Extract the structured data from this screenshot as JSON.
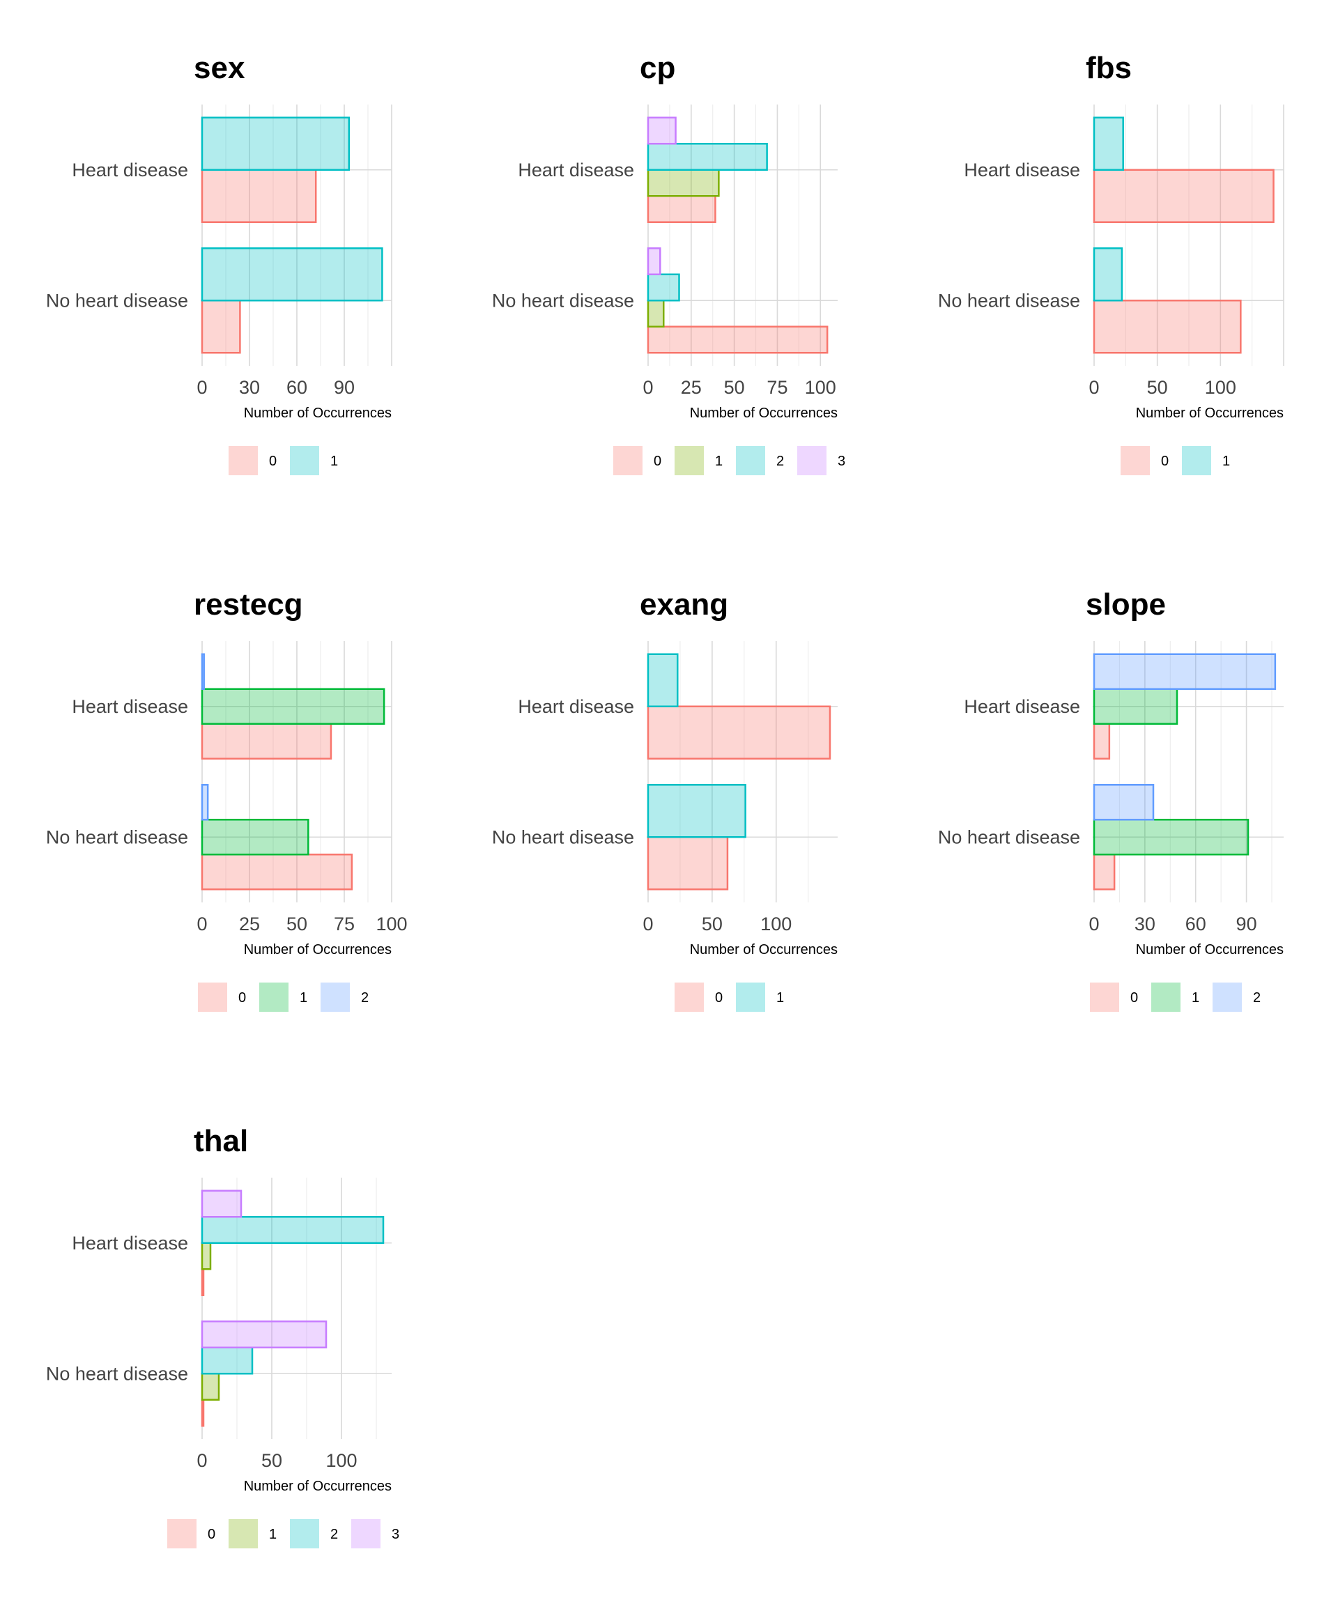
{
  "chart_data": [
    {
      "type": "bar",
      "orientation": "horizontal",
      "title": "sex",
      "xlabel": "Number of Occurrences",
      "categories": [
        "Heart disease",
        "No heart disease"
      ],
      "xlim": [
        0,
        120
      ],
      "xticks": [
        0,
        30,
        60,
        90
      ],
      "series": [
        {
          "name": "0",
          "values": [
            72,
            24
          ]
        },
        {
          "name": "1",
          "values": [
            93,
            114
          ]
        }
      ],
      "legend_position": "bottom",
      "grid": true
    },
    {
      "type": "bar",
      "orientation": "horizontal",
      "title": "cp",
      "xlabel": "Number of Occurrences",
      "categories": [
        "Heart disease",
        "No heart disease"
      ],
      "xlim": [
        0,
        110
      ],
      "xticks": [
        0,
        25,
        50,
        75,
        100
      ],
      "series": [
        {
          "name": "0",
          "values": [
            39,
            104
          ]
        },
        {
          "name": "1",
          "values": [
            41,
            9
          ]
        },
        {
          "name": "2",
          "values": [
            69,
            18
          ]
        },
        {
          "name": "3",
          "values": [
            16,
            7
          ]
        }
      ],
      "legend_position": "bottom",
      "grid": true
    },
    {
      "type": "bar",
      "orientation": "horizontal",
      "title": "fbs",
      "xlabel": "Number of Occurrences",
      "categories": [
        "Heart disease",
        "No heart disease"
      ],
      "xlim": [
        0,
        150
      ],
      "xticks": [
        0,
        50,
        100
      ],
      "series": [
        {
          "name": "0",
          "values": [
            142,
            116
          ]
        },
        {
          "name": "1",
          "values": [
            23,
            22
          ]
        }
      ],
      "legend_position": "bottom",
      "grid": true
    },
    {
      "type": "bar",
      "orientation": "horizontal",
      "title": "restecg",
      "xlabel": "Number of Occurrences",
      "categories": [
        "Heart disease",
        "No heart disease"
      ],
      "xlim": [
        0,
        100
      ],
      "xticks": [
        0,
        25,
        50,
        75,
        100
      ],
      "series": [
        {
          "name": "0",
          "values": [
            68,
            79
          ]
        },
        {
          "name": "1",
          "values": [
            96,
            56
          ]
        },
        {
          "name": "2",
          "values": [
            1,
            3
          ]
        }
      ],
      "legend_position": "bottom",
      "grid": true
    },
    {
      "type": "bar",
      "orientation": "horizontal",
      "title": "exang",
      "xlabel": "Number of Occurrences",
      "categories": [
        "Heart disease",
        "No heart disease"
      ],
      "xlim": [
        0,
        148
      ],
      "xticks": [
        0,
        50,
        100
      ],
      "series": [
        {
          "name": "0",
          "values": [
            142,
            62
          ]
        },
        {
          "name": "1",
          "values": [
            23,
            76
          ]
        }
      ],
      "legend_position": "bottom",
      "grid": true
    },
    {
      "type": "bar",
      "orientation": "horizontal",
      "title": "slope",
      "xlabel": "Number of Occurrences",
      "categories": [
        "Heart disease",
        "No heart disease"
      ],
      "xlim": [
        0,
        112
      ],
      "xticks": [
        0,
        30,
        60,
        90
      ],
      "series": [
        {
          "name": "0",
          "values": [
            9,
            12
          ]
        },
        {
          "name": "1",
          "values": [
            49,
            91
          ]
        },
        {
          "name": "2",
          "values": [
            107,
            35
          ]
        }
      ],
      "legend_position": "bottom",
      "grid": true
    },
    {
      "type": "bar",
      "orientation": "horizontal",
      "title": "thal",
      "xlabel": "Number of Occurrences",
      "categories": [
        "Heart disease",
        "No heart disease"
      ],
      "xlim": [
        0,
        136
      ],
      "xticks": [
        0,
        50,
        100
      ],
      "series": [
        {
          "name": "0",
          "values": [
            1,
            1
          ]
        },
        {
          "name": "1",
          "values": [
            6,
            12
          ]
        },
        {
          "name": "2",
          "values": [
            130,
            36
          ]
        },
        {
          "name": "3",
          "values": [
            28,
            89
          ]
        }
      ],
      "legend_position": "bottom",
      "grid": true
    }
  ],
  "palettes": {
    "2": [
      "#F8766D",
      "#00BFC4"
    ],
    "3": [
      "#F8766D",
      "#00BA38",
      "#619CFF"
    ],
    "4": [
      "#F8766D",
      "#7CAE00",
      "#00BFC4",
      "#C77CFF"
    ]
  }
}
